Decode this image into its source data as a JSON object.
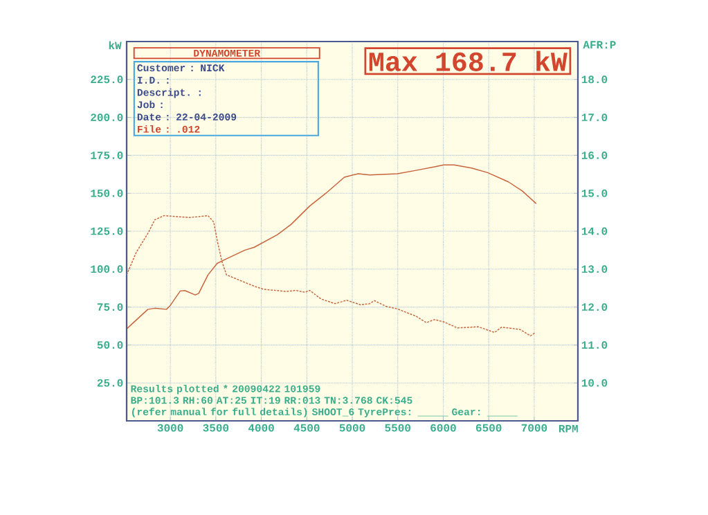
{
  "chart_data": {
    "type": "line",
    "xlabel": "RPM",
    "ylabel": "kW",
    "y2label": "AFR:P",
    "annotations": [
      "DYNAMOMETER",
      "Customer : NICK",
      "I.D. :",
      "Descript. :",
      "Job :",
      "Date : 22-04-2009",
      "File : .012",
      "Max 168.7 kW",
      "Results plotted * 20090422 101959",
      "BP:101.3 RH:60 AT:25 IT:19  RR:013 TN:3.768 CK:545",
      "(refer manual for full details) SHOOT_6  TyrePres: _____ Gear: _____"
    ],
    "xlim": [
      2520,
      7480
    ],
    "xticks": [
      3000,
      3500,
      4000,
      4500,
      5000,
      5500,
      6000,
      6500,
      7000
    ],
    "ylim": [
      0,
      250
    ],
    "yticks": [
      {
        "value": 25,
        "label": "25.0"
      },
      {
        "value": 50,
        "label": "50.0"
      },
      {
        "value": 75,
        "label": "75.0"
      },
      {
        "value": 100,
        "label": "100.0"
      },
      {
        "value": 125,
        "label": "125.0"
      },
      {
        "value": 150,
        "label": "150.0"
      },
      {
        "value": 175,
        "label": "175.0"
      },
      {
        "value": 200,
        "label": "200.0"
      },
      {
        "value": 225,
        "label": "225.0"
      }
    ],
    "y2lim": [
      9,
      19
    ],
    "y2ticks": [
      {
        "value": 10,
        "label": "10.0"
      },
      {
        "value": 11,
        "label": "11.0"
      },
      {
        "value": 12,
        "label": "12.0"
      },
      {
        "value": 13,
        "label": "13.0"
      },
      {
        "value": 14,
        "label": "14.0"
      },
      {
        "value": 15,
        "label": "15.0"
      },
      {
        "value": 16,
        "label": "16.0"
      },
      {
        "value": 17,
        "label": "17.0"
      },
      {
        "value": 18,
        "label": "18.0"
      }
    ],
    "grid": true,
    "series": [
      {
        "color": "#c8643c",
        "line_style": "solid",
        "x": [
          2520,
          2753,
          2829,
          2957,
          2995,
          3109,
          3160,
          3274,
          3312,
          3414,
          3515,
          3617,
          3820,
          3922,
          4176,
          4328,
          4532,
          4710,
          4913,
          5065,
          5192,
          5497,
          5700,
          5904,
          6005,
          6119,
          6310,
          6488,
          6716,
          6869,
          7021
        ],
        "values": [
          60.6,
          73.5,
          74.2,
          73.5,
          75.7,
          85.6,
          85.9,
          83,
          84,
          96.2,
          103.8,
          106.8,
          112.5,
          114.4,
          122.7,
          129.5,
          141.6,
          150,
          160.6,
          162.9,
          162.1,
          162.9,
          165.1,
          167.4,
          168.7,
          168.7,
          166.6,
          163.6,
          157.5,
          151.5,
          143.2
        ]
      },
      {
        "color": "#c8643c",
        "line_style": "dashed",
        "axis": "y2",
        "x": [
          2520,
          2627,
          2753,
          2829,
          2931,
          3210,
          3414,
          3477,
          3515,
          3566,
          3617,
          3769,
          3922,
          4023,
          4277,
          4379,
          4480,
          4532,
          4659,
          4811,
          4938,
          5091,
          5192,
          5243,
          5370,
          5497,
          5700,
          5814,
          5904,
          6005,
          6157,
          6386,
          6564,
          6640,
          6844,
          6958,
          7009
        ],
        "values": [
          12.85,
          13.45,
          13.94,
          14.3,
          14.41,
          14.36,
          14.41,
          14.24,
          13.76,
          13.21,
          12.85,
          12.7,
          12.55,
          12.47,
          12.41,
          12.44,
          12.39,
          12.44,
          12.21,
          12.09,
          12.18,
          12.06,
          12.09,
          12.17,
          12.02,
          11.95,
          11.76,
          11.59,
          11.67,
          11.61,
          11.45,
          11.48,
          11.33,
          11.47,
          11.41,
          11.24,
          11.32
        ]
      }
    ]
  }
}
